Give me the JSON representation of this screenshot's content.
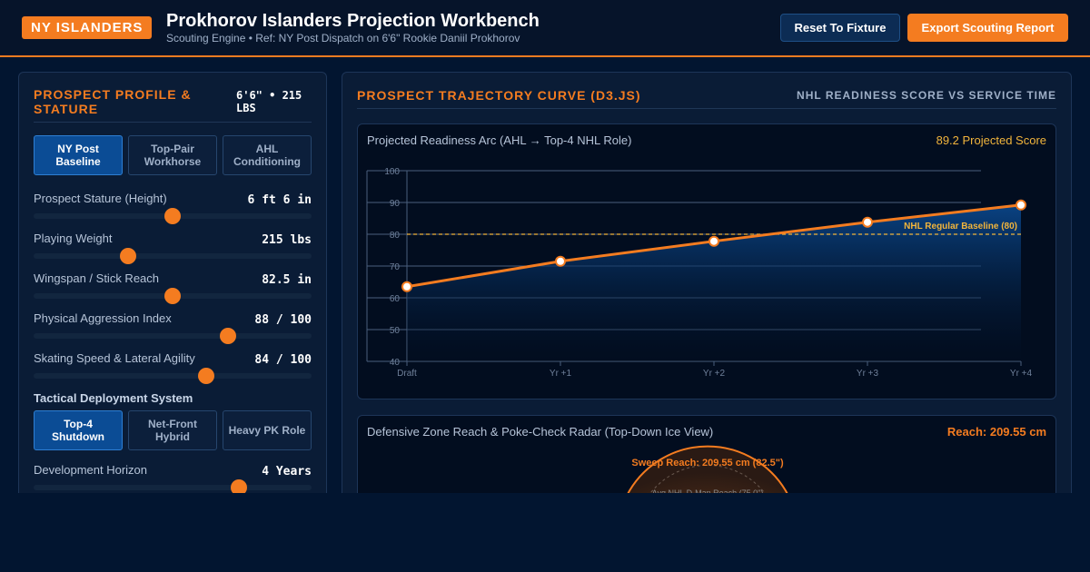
{
  "header": {
    "brand": "NY ISLANDERS",
    "title": "Prokhorov Islanders Projection Workbench",
    "subtitle": "Scouting Engine • Ref: NY Post Dispatch on 6'6\" Rookie Daniil Prokhorov",
    "reset_label": "Reset To Fixture",
    "export_label": "Export Scouting Report"
  },
  "profile": {
    "title": "PROSPECT PROFILE & STATURE",
    "stature_tag": "6'6\" • 215 LBS",
    "presets": [
      "NY Post Baseline",
      "Top-Pair Workhorse",
      "AHL Conditioning"
    ],
    "active_preset": 0,
    "sliders": [
      {
        "label": "Prospect Stature (Height)",
        "value": "6 ft 6 in",
        "fraction": 0.5
      },
      {
        "label": "Playing Weight",
        "value": "215 lbs",
        "fraction": 0.34
      },
      {
        "label": "Wingspan / Stick Reach",
        "value": "82.5 in",
        "fraction": 0.5
      },
      {
        "label": "Physical Aggression Index",
        "value": "88 / 100",
        "fraction": 0.7
      },
      {
        "label": "Skating Speed & Lateral Agility",
        "value": "84 / 100",
        "fraction": 0.62
      }
    ],
    "tactical_title": "Tactical Deployment System",
    "tactical": [
      "Top-4 Shutdown",
      "Net-Front Hybrid",
      "Heavy PK Role"
    ],
    "active_tactical": 0,
    "horizon": {
      "label": "Development Horizon",
      "value": "4 Years",
      "fraction": 0.74
    }
  },
  "trajectory": {
    "title": "PROSPECT TRAJECTORY CURVE (D3.JS)",
    "subtitle": "NHL READINESS SCORE VS SERVICE TIME",
    "chart_title": "Projected Readiness Arc (AHL → Top-4 NHL Role)",
    "projected_score": "89.2 Projected Score",
    "baseline_label": "NHL Regular Baseline (80)"
  },
  "chart_data": {
    "type": "line",
    "categories": [
      "Draft",
      "Yr +1",
      "Yr +2",
      "Yr +3",
      "Yr +4"
    ],
    "series": [
      {
        "values": [
          63.5,
          71.5,
          77.8,
          83.8,
          89.2
        ]
      }
    ],
    "baseline": 80,
    "ylim": [
      40,
      100
    ],
    "yticks": [
      40,
      50,
      60,
      70,
      80,
      90,
      100
    ],
    "grid": true,
    "colors": {
      "line": "#f47c20",
      "baseline": "#f2b53c",
      "area": "#0b4c95"
    }
  },
  "radar": {
    "title": "Defensive Zone Reach & Poke-Check Radar (Top-Down Ice View)",
    "reach": "Reach: 209.55 cm",
    "sweep_label": "Sweep Reach: 209.55 cm (82.5\")",
    "avg_label": "Avg NHL D-Man Reach (75.0\")"
  }
}
